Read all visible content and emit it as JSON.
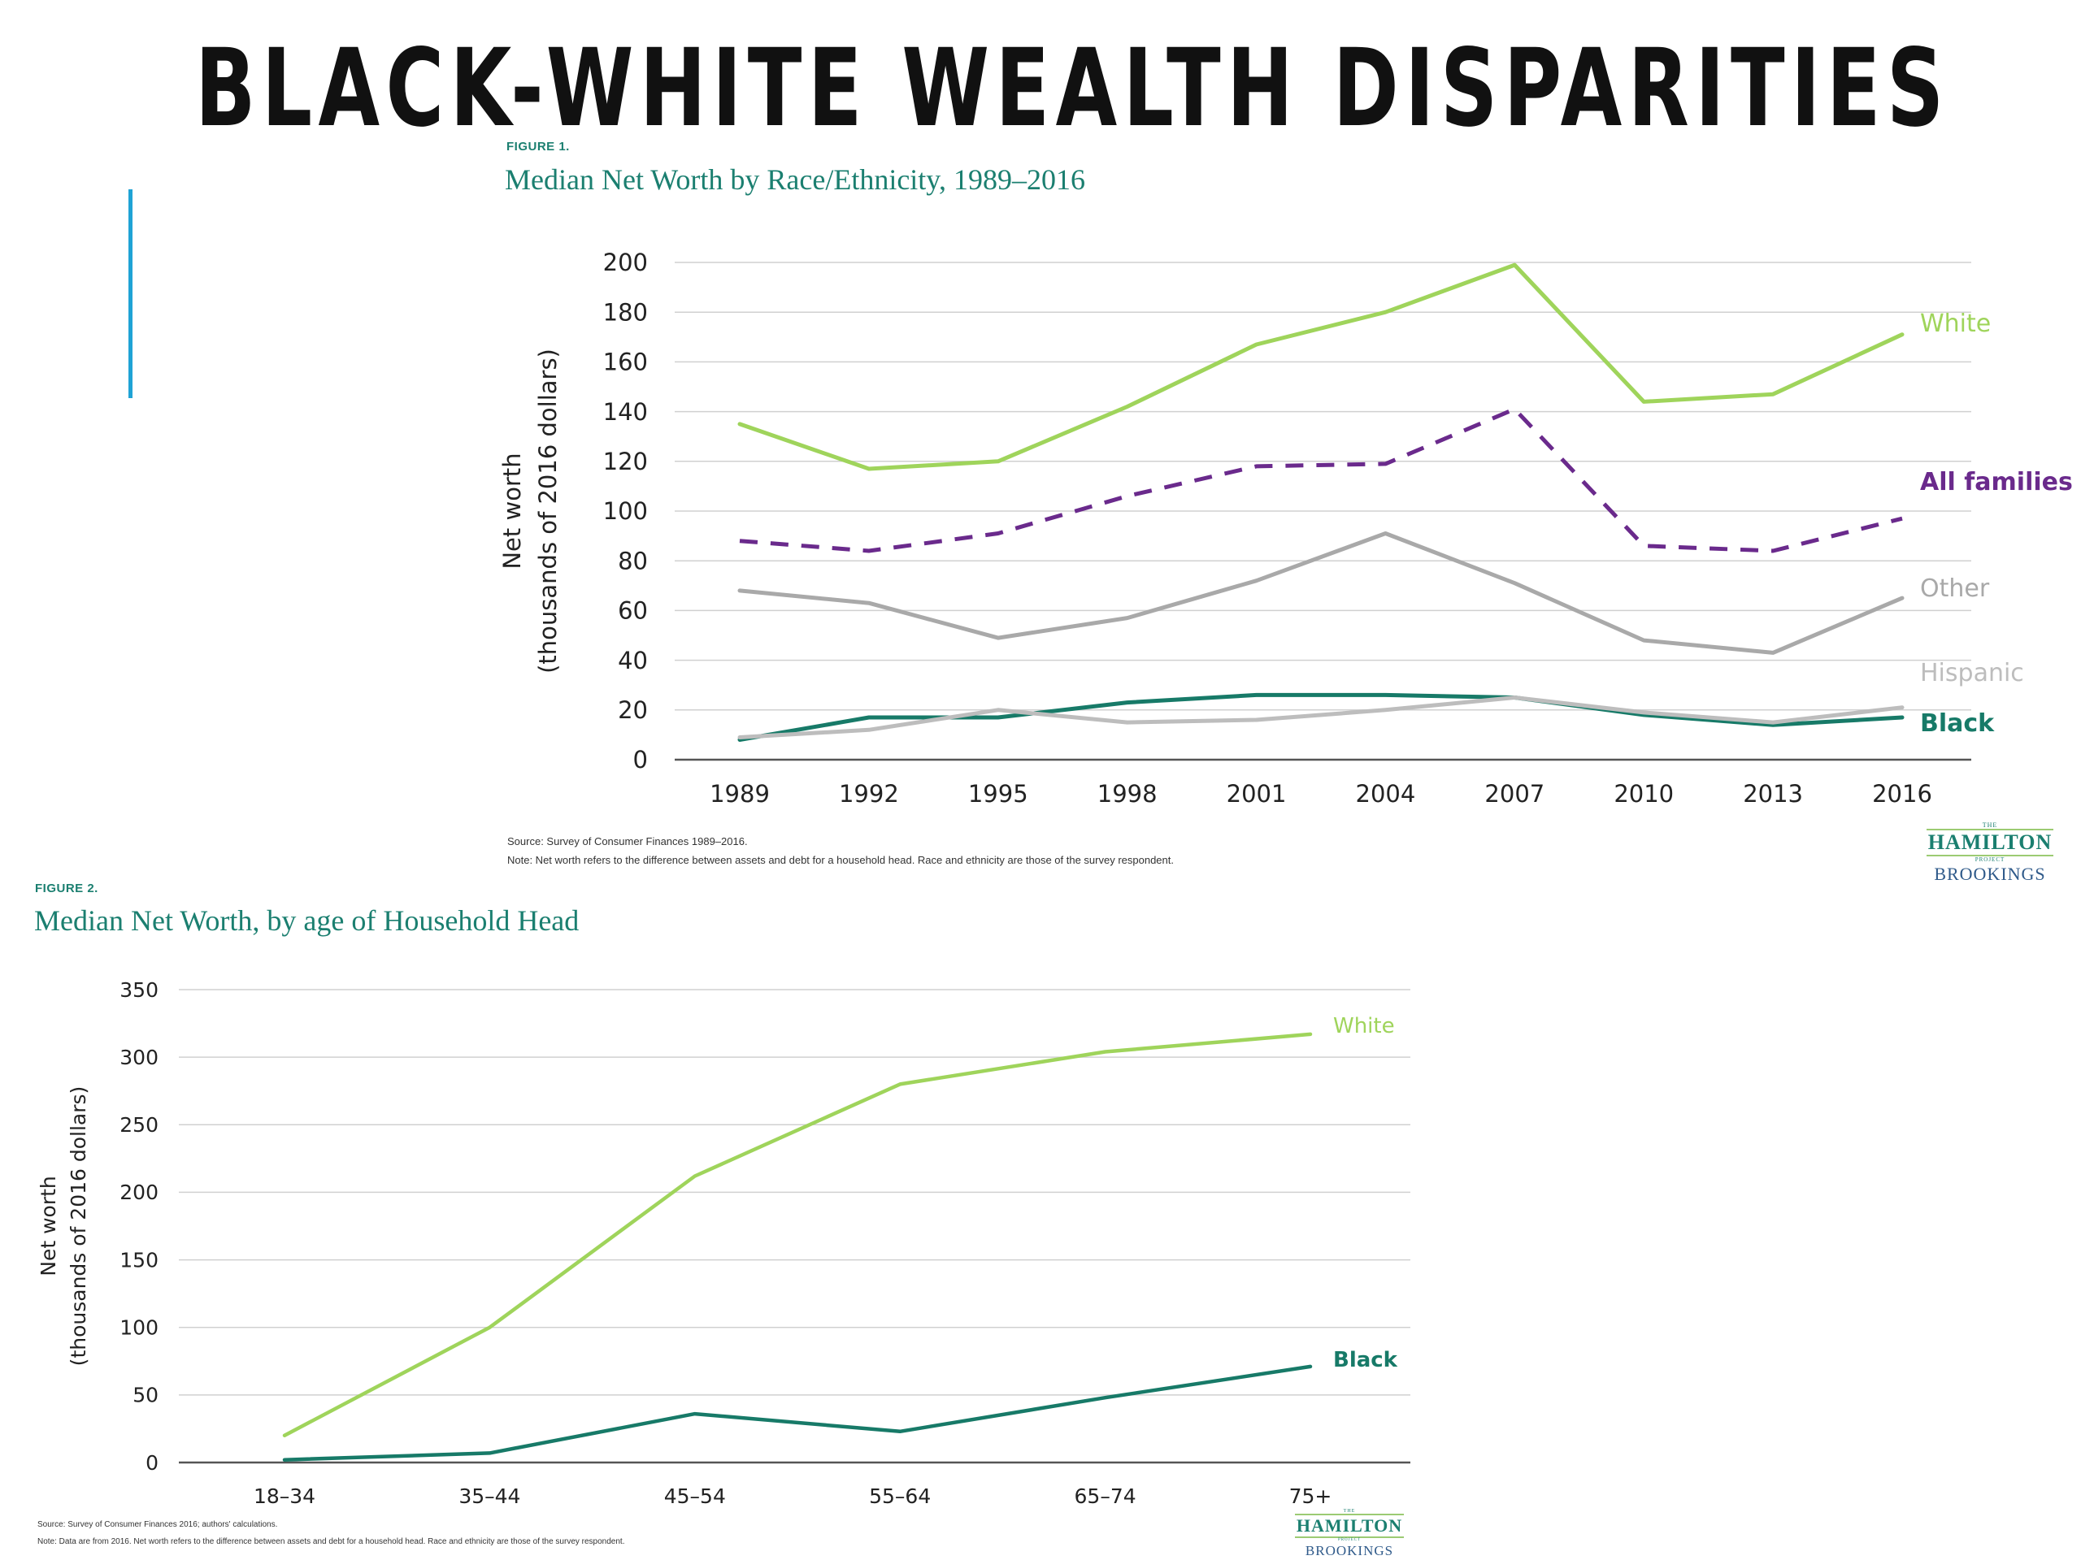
{
  "slide": {
    "title": "BLACK-WHITE WEALTH DISPARITIES"
  },
  "colors": {
    "white": "#9fd45b",
    "all_families": "#6a2a8c",
    "other": "#a9a9a9",
    "hispanic": "#bdbdbd",
    "black": "#177a68",
    "accent": "#1fa3d5"
  },
  "figure1": {
    "label": "FIGURE 1.",
    "title": "Median Net Worth by Race/Ethnicity, 1989–2016",
    "source": "Source: Survey of Consumer Finances 1989–2016.",
    "note": "Note: Net worth refers to the difference between assets and debt for a household head. Race and ethnicity are those of the survey respondent."
  },
  "figure2": {
    "label": "FIGURE 2.",
    "title": "Median Net Worth, by age of Household Head",
    "source": "Source: Survey of Consumer Finances 2016; authors' calculations.",
    "note": "Note: Data are from 2016. Net worth refers to the difference between assets and debt for a household head. Race and ethnicity are those of the survey respondent."
  },
  "logo": {
    "the": "THE",
    "name": "HAMILTON",
    "project": "PROJECT",
    "partner": "BROOKINGS"
  },
  "chart_data": [
    {
      "type": "line",
      "title": "Median Net Worth by Race/Ethnicity, 1989–2016",
      "ylabel": "Net worth",
      "ylabel2": "(thousands of 2016 dollars)",
      "xlabel": "",
      "x": [
        "1989",
        "1992",
        "1995",
        "1998",
        "2001",
        "2004",
        "2007",
        "2010",
        "2013",
        "2016"
      ],
      "ylim": [
        0,
        200
      ],
      "yticks": [
        0,
        20,
        40,
        60,
        80,
        100,
        120,
        140,
        160,
        180,
        200
      ],
      "grid": true,
      "legend": "direct labels at right",
      "series": [
        {
          "name": "White",
          "key": "white",
          "dashed": false,
          "values": [
            135,
            117,
            120,
            142,
            167,
            180,
            199,
            144,
            147,
            171
          ]
        },
        {
          "name": "All families",
          "key": "all_families",
          "dashed": true,
          "values": [
            88,
            84,
            91,
            106,
            118,
            119,
            141,
            86,
            84,
            97
          ]
        },
        {
          "name": "Other",
          "key": "other",
          "dashed": false,
          "values": [
            68,
            63,
            49,
            57,
            72,
            91,
            71,
            48,
            43,
            65
          ]
        },
        {
          "name": "Hispanic",
          "key": "hispanic",
          "dashed": false,
          "values": [
            9,
            12,
            20,
            15,
            16,
            20,
            25,
            19,
            15,
            21
          ]
        },
        {
          "name": "Black",
          "key": "black",
          "dashed": false,
          "values": [
            8,
            17,
            17,
            23,
            26,
            26,
            25,
            18,
            14,
            17
          ]
        }
      ]
    },
    {
      "type": "line",
      "title": "Median Net Worth, by age of Household Head",
      "ylabel": "Net worth",
      "ylabel2": "(thousands of 2016 dollars)",
      "xlabel": "",
      "x": [
        "18–34",
        "35–44",
        "45–54",
        "55–64",
        "65–74",
        "75+"
      ],
      "ylim": [
        0,
        350
      ],
      "yticks": [
        0,
        50,
        100,
        150,
        200,
        250,
        300,
        350
      ],
      "grid": true,
      "legend": "direct labels at right",
      "series": [
        {
          "name": "White",
          "key": "white",
          "dashed": false,
          "values": [
            20,
            100,
            212,
            280,
            304,
            317
          ]
        },
        {
          "name": "Black",
          "key": "black",
          "dashed": false,
          "values": [
            2,
            7,
            36,
            23,
            48,
            71
          ]
        }
      ]
    }
  ]
}
